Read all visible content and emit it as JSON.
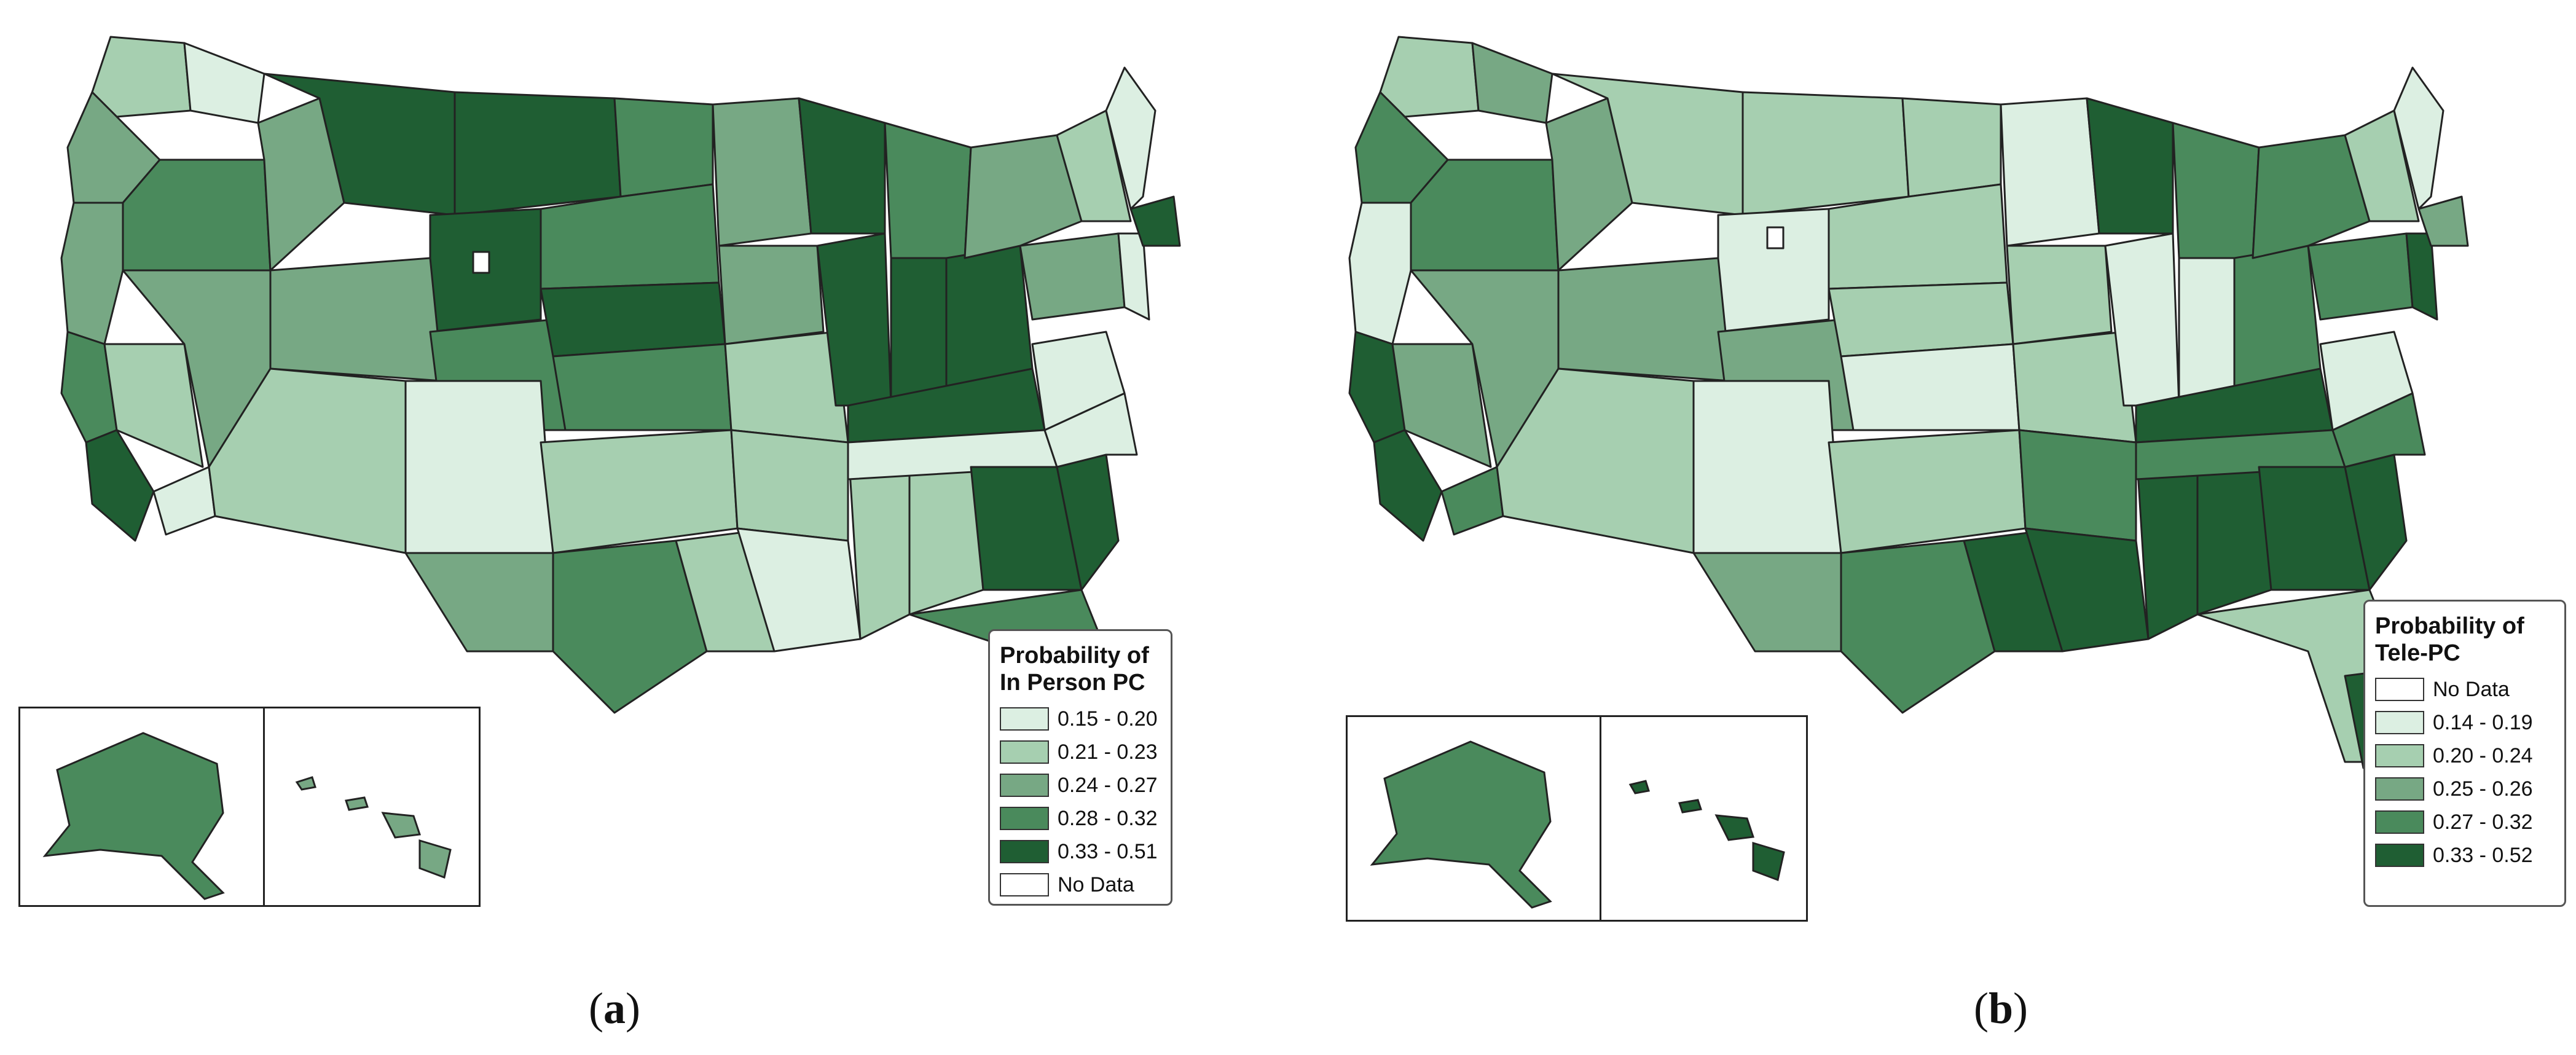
{
  "panels": [
    {
      "id": "a",
      "caption_letter": "a",
      "legend_title_line1": "Probability of",
      "legend_title_line2": "In Person PC",
      "legend": [
        {
          "label": "0.15 - 0.20",
          "color": "#dcefe2"
        },
        {
          "label": "0.21 - 0.23",
          "color": "#a6cfb0"
        },
        {
          "label": "0.24 - 0.27",
          "color": "#77a884"
        },
        {
          "label": "0.28 - 0.32",
          "color": "#4a8a5c"
        },
        {
          "label": "0.33 - 0.51",
          "color": "#1f5e33"
        },
        {
          "label": "No Data",
          "color": "#ffffff"
        }
      ]
    },
    {
      "id": "b",
      "caption_letter": "b",
      "legend_title_line1": "Probability of",
      "legend_title_line2": "Tele-PC",
      "legend": [
        {
          "label": "No Data",
          "color": "#ffffff"
        },
        {
          "label": "0.14 - 0.19",
          "color": "#dcefe2"
        },
        {
          "label": "0.20 - 0.24",
          "color": "#a6cfb0"
        },
        {
          "label": "0.25 - 0.26",
          "color": "#77a884"
        },
        {
          "label": "0.27 - 0.32",
          "color": "#4a8a5c"
        },
        {
          "label": "0.33 - 0.52",
          "color": "#1f5e33"
        }
      ]
    }
  ],
  "colors": {
    "border": "#222222",
    "class1": "#dcefe2",
    "class2": "#a6cfb0",
    "class3": "#77a884",
    "class4": "#4a8a5c",
    "class5": "#1f5e33"
  }
}
